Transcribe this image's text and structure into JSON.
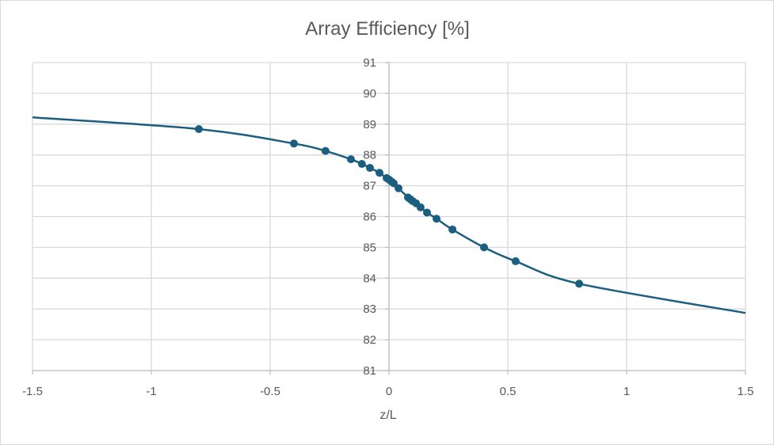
{
  "chart_data": {
    "type": "scatter",
    "title": "Array Efficiency [%]",
    "xlabel": "z/L",
    "ylabel": "",
    "xlim": [
      -1.5,
      1.5
    ],
    "ylim": [
      81,
      91
    ],
    "x_ticks": [
      -1.5,
      -1,
      -0.5,
      0,
      0.5,
      1,
      1.5
    ],
    "x_tick_labels": [
      "-1.5",
      "-1",
      "-0.5",
      "0",
      "0.5",
      "1",
      "1.5"
    ],
    "y_ticks": [
      81,
      82,
      83,
      84,
      85,
      86,
      87,
      88,
      89,
      90,
      91
    ],
    "y_tick_labels": [
      "81",
      "82",
      "83",
      "84",
      "85",
      "86",
      "87",
      "88",
      "89",
      "90",
      "91"
    ],
    "grid": true,
    "line_color": "#1b5e80",
    "series": [
      {
        "line": [
          [
            -1.5,
            89.22
          ],
          [
            -0.8,
            88.84
          ],
          [
            -0.4,
            88.37
          ],
          [
            -0.267,
            88.13
          ],
          [
            -0.16,
            87.86
          ],
          [
            -0.114,
            87.71
          ],
          [
            -0.08,
            87.58
          ],
          [
            -0.04,
            87.42
          ],
          [
            -0.01,
            87.25
          ],
          [
            0.0,
            87.2
          ],
          [
            0.02,
            87.08
          ],
          [
            0.04,
            86.92
          ],
          [
            0.08,
            86.62
          ],
          [
            0.1,
            86.5
          ],
          [
            0.114,
            86.43
          ],
          [
            0.133,
            86.3
          ],
          [
            0.16,
            86.13
          ],
          [
            0.2,
            85.93
          ],
          [
            0.267,
            85.58
          ],
          [
            0.4,
            85.0
          ],
          [
            0.533,
            84.55
          ],
          [
            0.8,
            83.82
          ],
          [
            1.5,
            82.87
          ]
        ],
        "points": [
          [
            -0.8,
            88.84
          ],
          [
            -0.4,
            88.37
          ],
          [
            -0.267,
            88.13
          ],
          [
            -0.16,
            87.86
          ],
          [
            -0.114,
            87.71
          ],
          [
            -0.08,
            87.58
          ],
          [
            -0.04,
            87.42
          ],
          [
            -0.01,
            87.25
          ],
          [
            0.0,
            87.2
          ],
          [
            0.01,
            87.14
          ],
          [
            0.02,
            87.08
          ],
          [
            0.04,
            86.92
          ],
          [
            0.08,
            86.62
          ],
          [
            0.09,
            86.56
          ],
          [
            0.1,
            86.5
          ],
          [
            0.114,
            86.43
          ],
          [
            0.133,
            86.3
          ],
          [
            0.16,
            86.13
          ],
          [
            0.2,
            85.93
          ],
          [
            0.267,
            85.58
          ],
          [
            0.4,
            85.0
          ],
          [
            0.533,
            84.55
          ],
          [
            0.8,
            83.82
          ]
        ]
      }
    ]
  }
}
